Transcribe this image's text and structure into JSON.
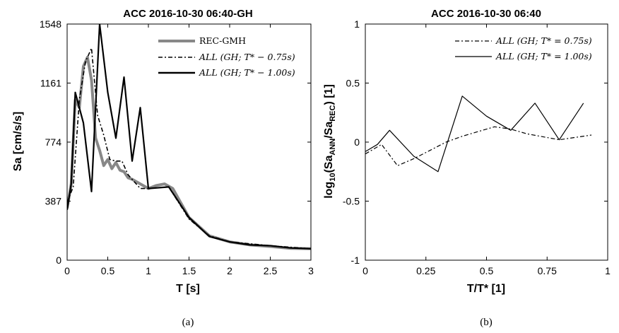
{
  "captions": [
    "(a)",
    "(b)"
  ],
  "chart_data": [
    {
      "type": "line",
      "title": "ACC 2016-10-30 06:40-GH",
      "xlabel": "T [s]",
      "ylabel": "Sa [cm/s/s]",
      "xlim": [
        0,
        3
      ],
      "ylim": [
        0,
        1548
      ],
      "xticks": [
        "0",
        "0.5",
        "1",
        "1.5",
        "2",
        "2.5",
        "3"
      ],
      "yticks": [
        "0",
        "387",
        "774",
        "1161",
        "1548"
      ],
      "legend_position": "top-right",
      "legend": [
        "REC-GMH",
        "ALL (GH; T* − 0.75s)",
        "ALL (GH; T* − 1.00s)"
      ],
      "series": [
        {
          "name": "REC-GMH",
          "color": "#888888",
          "style": "solid-thick",
          "x": [
            0,
            0.05,
            0.1,
            0.15,
            0.2,
            0.25,
            0.3,
            0.35,
            0.4,
            0.45,
            0.5,
            0.55,
            0.6,
            0.65,
            0.7,
            0.75,
            0.8,
            0.9,
            1.0,
            1.1,
            1.2,
            1.3,
            1.5,
            1.75,
            2.0,
            2.25,
            2.5,
            2.75,
            3.0
          ],
          "values": [
            340,
            500,
            1050,
            1000,
            1270,
            1330,
            1180,
            800,
            720,
            620,
            660,
            600,
            640,
            590,
            580,
            540,
            530,
            500,
            470,
            490,
            500,
            470,
            280,
            160,
            120,
            100,
            90,
            78,
            75
          ]
        },
        {
          "name": "ALL (GH; T* − 0.75s)",
          "color": "#000000",
          "style": "dash-dot",
          "x": [
            0,
            0.075,
            0.15,
            0.225,
            0.3,
            0.375,
            0.45,
            0.525,
            0.6,
            0.675,
            0.75,
            0.9,
            1.0,
            1.25,
            1.5,
            1.75,
            2.0,
            2.5,
            3.0
          ],
          "values": [
            380,
            480,
            1050,
            1300,
            1390,
            950,
            820,
            660,
            650,
            650,
            560,
            470,
            470,
            480,
            270,
            160,
            120,
            95,
            75
          ]
        },
        {
          "name": "ALL (GH; T* − 1.00s)",
          "color": "#000000",
          "style": "solid",
          "x": [
            0,
            0.05,
            0.1,
            0.2,
            0.3,
            0.4,
            0.5,
            0.6,
            0.7,
            0.8,
            0.9,
            1.0,
            1.25,
            1.5,
            1.75,
            2.0,
            2.25,
            2.5,
            2.75,
            3.0
          ],
          "values": [
            330,
            500,
            1100,
            900,
            450,
            1548,
            1100,
            800,
            1200,
            650,
            1000,
            470,
            480,
            280,
            155,
            120,
            100,
            95,
            80,
            75
          ]
        }
      ]
    },
    {
      "type": "line",
      "title": "ACC 2016-10-30 06:40",
      "xlabel": "T/T* [1]",
      "ylabel": "log10(Sa ANN /Sa REC) [1]",
      "ylabel_parts": {
        "log": "log",
        "log_sub": "10",
        "open": "(Sa",
        "sub1": "ANN",
        "mid": "/Sa",
        "sub2": "REC",
        "close": ") [1]"
      },
      "xlim": [
        0,
        1
      ],
      "ylim": [
        -1,
        1
      ],
      "xticks": [
        "0",
        "0.25",
        "0.5",
        "0.75",
        "1"
      ],
      "yticks": [
        "-1",
        "-0.5",
        "0",
        "0.5",
        "1"
      ],
      "legend_position": "top-right",
      "legend": [
        "ALL (GH; T* = 0.75s)",
        "ALL (GH; T* = 1.00s)"
      ],
      "series": [
        {
          "name": "ALL (GH; T* = 0.75s)",
          "color": "#000000",
          "style": "dash-dot",
          "x": [
            0,
            0.067,
            0.133,
            0.2,
            0.267,
            0.333,
            0.4,
            0.533,
            0.6,
            0.667,
            0.8,
            0.933
          ],
          "values": [
            -0.1,
            -0.02,
            -0.2,
            -0.14,
            -0.07,
            0.0,
            0.05,
            0.13,
            0.11,
            0.07,
            0.02,
            0.06
          ]
        },
        {
          "name": "ALL (GH; T* = 1.00s)",
          "color": "#000000",
          "style": "solid",
          "x": [
            0,
            0.05,
            0.1,
            0.2,
            0.3,
            0.4,
            0.5,
            0.6,
            0.7,
            0.8,
            0.9
          ],
          "values": [
            -0.08,
            -0.02,
            0.1,
            -0.12,
            -0.25,
            0.39,
            0.22,
            0.1,
            0.33,
            0.02,
            0.33
          ]
        }
      ]
    }
  ]
}
